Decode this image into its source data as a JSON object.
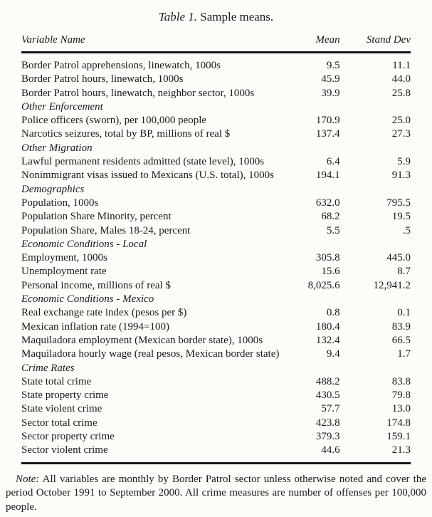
{
  "page": {
    "background_color": "#fcfcf9",
    "text_color": "#1b1b1b",
    "rule_color": "#161616"
  },
  "title": {
    "prefix": "Table 1.",
    "rest": "Sample means."
  },
  "table": {
    "columns": [
      {
        "key": "variable",
        "label": "Variable Name"
      },
      {
        "key": "mean",
        "label": "Mean"
      },
      {
        "key": "sd",
        "label": "Stand Dev"
      }
    ],
    "rows": [
      {
        "type": "data",
        "variable": "Border Patrol apprehensions, linewatch, 1000s",
        "mean": "9.5",
        "sd": "11.1"
      },
      {
        "type": "data",
        "variable": "Border Patrol hours, linewatch, 1000s",
        "mean": "45.9",
        "sd": "44.0"
      },
      {
        "type": "data",
        "variable": "Border Patrol hours, linewatch, neighbor sector, 1000s",
        "mean": "39.9",
        "sd": "25.8"
      },
      {
        "type": "section",
        "variable": "Other Enforcement",
        "mean": "",
        "sd": ""
      },
      {
        "type": "data",
        "variable": "Police officers (sworn), per 100,000 people",
        "mean": "170.9",
        "sd": "25.0"
      },
      {
        "type": "data",
        "variable": "Narcotics seizures, total by BP, millions of real $",
        "mean": "137.4",
        "sd": "27.3"
      },
      {
        "type": "section",
        "variable": "Other Migration",
        "mean": "",
        "sd": ""
      },
      {
        "type": "data",
        "variable": "Lawful permanent residents admitted (state level), 1000s",
        "mean": "6.4",
        "sd": "5.9"
      },
      {
        "type": "data",
        "variable": "Nonimmigrant visas issued to Mexicans (U.S. total), 1000s",
        "mean": "194.1",
        "sd": "91.3"
      },
      {
        "type": "section",
        "variable": "Demographics",
        "mean": "",
        "sd": ""
      },
      {
        "type": "data",
        "variable": "Population, 1000s",
        "mean": "632.0",
        "sd": "795.5"
      },
      {
        "type": "data",
        "variable": "Population Share Minority, percent",
        "mean": "68.2",
        "sd": "19.5"
      },
      {
        "type": "data",
        "variable": "Population Share, Males 18-24, percent",
        "mean": "5.5",
        "sd": ".5"
      },
      {
        "type": "section",
        "variable": "Economic Conditions - Local",
        "mean": "",
        "sd": ""
      },
      {
        "type": "data",
        "variable": "Employment, 1000s",
        "mean": "305.8",
        "sd": "445.0"
      },
      {
        "type": "data",
        "variable": "Unemployment rate",
        "mean": "15.6",
        "sd": "8.7"
      },
      {
        "type": "data",
        "variable": "Personal income, millions of real $",
        "mean": "8,025.6",
        "sd": "12,941.2"
      },
      {
        "type": "section",
        "variable": "Economic Conditions - Mexico",
        "mean": "",
        "sd": ""
      },
      {
        "type": "data",
        "variable": "Real exchange rate index (pesos per $)",
        "mean": "0.8",
        "sd": "0.1"
      },
      {
        "type": "data",
        "variable": "Mexican inflation rate (1994=100)",
        "mean": "180.4",
        "sd": "83.9"
      },
      {
        "type": "data",
        "variable": "Maquiladora employment (Mexican border state), 1000s",
        "mean": "132.4",
        "sd": "66.5"
      },
      {
        "type": "data",
        "variable": "Maquiladora hourly wage (real pesos, Mexican border state)",
        "mean": "9.4",
        "sd": "1.7"
      },
      {
        "type": "section",
        "variable": "Crime Rates",
        "mean": "",
        "sd": ""
      },
      {
        "type": "data",
        "variable": "State total crime",
        "mean": "488.2",
        "sd": "83.8"
      },
      {
        "type": "data",
        "variable": "State property crime",
        "mean": "430.5",
        "sd": "79.8"
      },
      {
        "type": "data",
        "variable": "State violent crime",
        "mean": "57.7",
        "sd": "13.0"
      },
      {
        "type": "data",
        "variable": "Sector total crime",
        "mean": "423.8",
        "sd": "174.8"
      },
      {
        "type": "data",
        "variable": "Sector property crime",
        "mean": "379.3",
        "sd": "159.1"
      },
      {
        "type": "data",
        "variable": "Sector violent crime",
        "mean": "44.6",
        "sd": "21.3"
      }
    ]
  },
  "note": {
    "label": "Note:",
    "text": "All variables are monthly by Border Patrol sector unless otherwise noted and cover the period October 1991 to September 2000.  All crime measures are number of offenses per 100,000 people."
  }
}
